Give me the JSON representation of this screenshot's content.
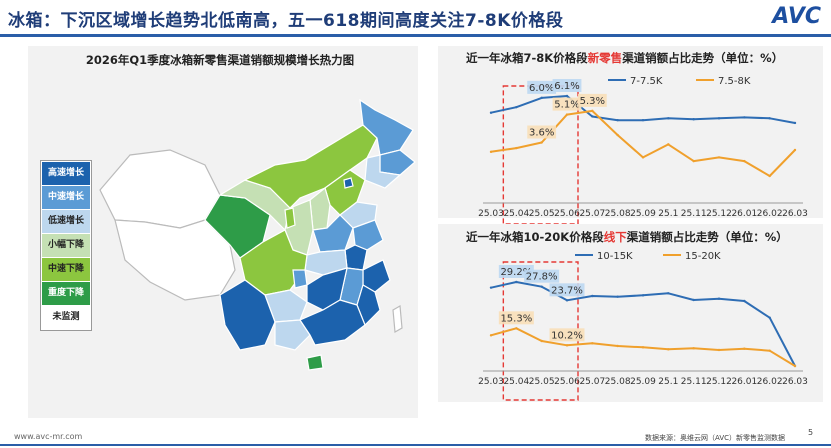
{
  "header": {
    "title": "冰箱：下沉区域增长趋势北低南高，五一618期间高度关注7-8K价格段",
    "logo": "AVC"
  },
  "map": {
    "title": "2026年Q1季度冰箱新零售渠道销额规模增长热力图",
    "legend": [
      {
        "label": "高速增长",
        "color": "#1c62ad",
        "text_color": "#ffffff"
      },
      {
        "label": "中速增长",
        "color": "#5b9bd5",
        "text_color": "#ffffff"
      },
      {
        "label": "低速增长",
        "color": "#bdd7ee",
        "text_color": "#222222"
      },
      {
        "label": "小幅下降",
        "color": "#c5e0b4",
        "text_color": "#222222"
      },
      {
        "label": "中速下降",
        "color": "#8cc63f",
        "text_color": "#222222"
      },
      {
        "label": "重度下降",
        "color": "#2e9c48",
        "text_color": "#ffffff"
      },
      {
        "label": "未监测",
        "color": "#ffffff",
        "text_color": "#222222"
      }
    ]
  },
  "chart_data": [
    {
      "type": "line",
      "title_prefix": "近一年冰箱7-8K价格段",
      "title_highlight": "新零售",
      "title_suffix": "渠道销额占比走势（单位：%）",
      "categories": [
        "25.03",
        "25.04",
        "25.05",
        "25.06",
        "25.07",
        "25.08",
        "25.09",
        "25.1",
        "25.11",
        "25.12",
        "26.01",
        "26.02",
        "26.03"
      ],
      "series": [
        {
          "name": "7-7.5K",
          "color": "#2e6db4",
          "values": [
            5.2,
            5.5,
            6.0,
            6.1,
            5.0,
            4.8,
            4.8,
            4.9,
            4.85,
            4.9,
            4.95,
            4.9,
            4.65
          ]
        },
        {
          "name": "7.5-8K",
          "color": "#f0a02c",
          "values": [
            3.1,
            3.3,
            3.6,
            5.1,
            5.3,
            4.0,
            2.8,
            3.5,
            2.6,
            2.8,
            2.6,
            1.8,
            3.2
          ]
        }
      ],
      "data_labels": [
        {
          "series": 0,
          "index": 2,
          "text": "6.0%"
        },
        {
          "series": 0,
          "index": 3,
          "text": "6.1%"
        },
        {
          "series": 1,
          "index": 2,
          "text": "3.6%"
        },
        {
          "series": 1,
          "index": 3,
          "text": "5.1%"
        },
        {
          "series": 1,
          "index": 4,
          "text": "5.3%"
        }
      ],
      "highlight_range": [
        "25.04",
        "25.06"
      ]
    },
    {
      "type": "line",
      "title_prefix": "近一年冰箱10-20K价格段",
      "title_highlight": "线下",
      "title_suffix": "渠道销额占比走势（单位：%）",
      "categories": [
        "25.03",
        "25.04",
        "25.05",
        "25.06",
        "25.07",
        "25.08",
        "25.09",
        "25.1",
        "25.11",
        "25.12",
        "26.01",
        "26.02",
        "26.03"
      ],
      "series": [
        {
          "name": "10-15K",
          "color": "#2e6db4",
          "values": [
            27.5,
            29.2,
            27.8,
            23.7,
            25.0,
            24.8,
            25.2,
            25.8,
            23.8,
            24.2,
            23.5,
            18.5,
            4.0
          ]
        },
        {
          "name": "15-20K",
          "color": "#f0a02c",
          "values": [
            13.2,
            15.3,
            11.5,
            10.2,
            10.8,
            10.0,
            9.6,
            9.0,
            9.3,
            8.8,
            9.2,
            8.6,
            4.0
          ]
        }
      ],
      "data_labels": [
        {
          "series": 0,
          "index": 1,
          "text": "29.2%"
        },
        {
          "series": 0,
          "index": 2,
          "text": "27.8%"
        },
        {
          "series": 0,
          "index": 3,
          "text": "23.7%"
        },
        {
          "series": 1,
          "index": 1,
          "text": "15.3%"
        },
        {
          "series": 1,
          "index": 3,
          "text": "10.2%"
        }
      ],
      "highlight_range": [
        "25.04",
        "25.06"
      ]
    }
  ],
  "footer": {
    "website": "www.avc-mr.com",
    "source": "数据来源：奥维云网（AVC）新零售监测数据",
    "page": "5"
  }
}
